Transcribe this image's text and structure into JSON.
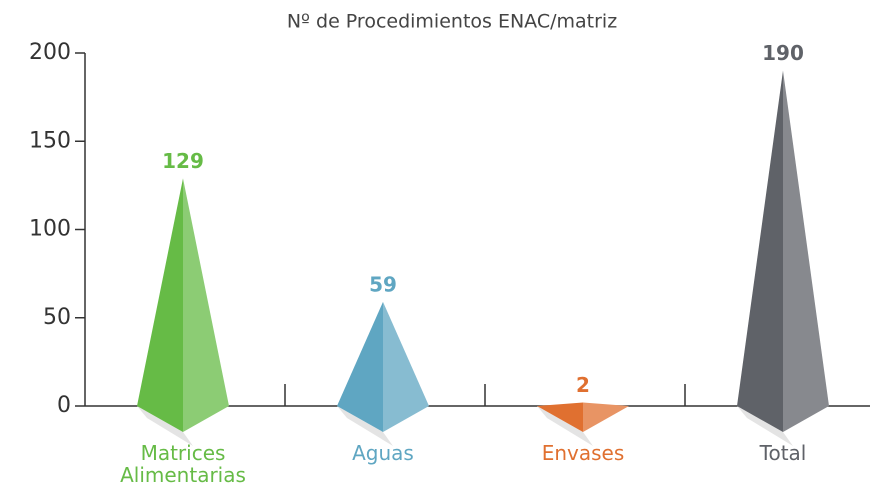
{
  "chart_data": {
    "type": "bar",
    "title": "Nº de Procedimientos ENAC/matriz",
    "categories": [
      "Matrices Alimentarias",
      "Aguas",
      "Envases",
      "Total"
    ],
    "values": [
      129,
      59,
      2,
      190
    ],
    "colors": [
      "#66bb46",
      "#5fa6c2",
      "#e07030",
      "#5f6268"
    ],
    "ylim": [
      0,
      200
    ],
    "yticks": [
      0,
      50,
      100,
      150,
      200
    ]
  }
}
